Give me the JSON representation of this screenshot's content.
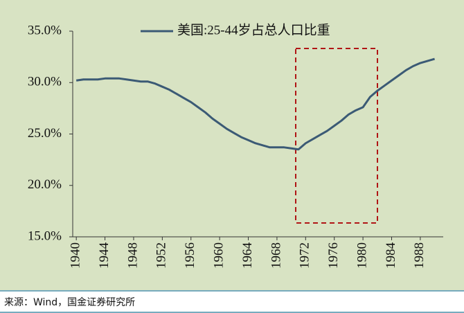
{
  "chart_data": {
    "type": "line",
    "x": [
      1940,
      1941,
      1942,
      1943,
      1944,
      1945,
      1946,
      1947,
      1948,
      1949,
      1950,
      1951,
      1952,
      1953,
      1954,
      1955,
      1956,
      1957,
      1958,
      1959,
      1960,
      1961,
      1962,
      1963,
      1964,
      1965,
      1966,
      1967,
      1968,
      1969,
      1970,
      1971,
      1972,
      1973,
      1974,
      1975,
      1976,
      1977,
      1978,
      1979,
      1980,
      1981,
      1982,
      1983,
      1984,
      1985,
      1986,
      1987,
      1988,
      1989,
      1990
    ],
    "series": [
      {
        "name": "美国:25-44岁占总人口比重",
        "color": "#3b5a75",
        "values": [
          30.2,
          30.3,
          30.3,
          30.3,
          30.4,
          30.4,
          30.4,
          30.3,
          30.2,
          30.1,
          30.1,
          29.9,
          29.6,
          29.3,
          28.9,
          28.5,
          28.1,
          27.6,
          27.1,
          26.5,
          26.0,
          25.5,
          25.1,
          24.7,
          24.4,
          24.1,
          23.9,
          23.7,
          23.7,
          23.7,
          23.6,
          23.5,
          24.1,
          24.5,
          24.9,
          25.3,
          25.8,
          26.3,
          26.9,
          27.3,
          27.6,
          28.6,
          29.2,
          29.7,
          30.2,
          30.7,
          31.2,
          31.6,
          31.9,
          32.1,
          32.3
        ]
      }
    ],
    "xlim": [
      1939.5,
      1991.2
    ],
    "xticks": [
      1940,
      1944,
      1948,
      1952,
      1956,
      1960,
      1964,
      1968,
      1972,
      1976,
      1980,
      1984,
      1988
    ],
    "ylim": [
      15,
      35
    ],
    "yticks": [
      {
        "value": 15,
        "label": "15.0%"
      },
      {
        "value": 20,
        "label": "20.0%"
      },
      {
        "value": 25,
        "label": "25.0%"
      },
      {
        "value": 30,
        "label": "30.0%"
      },
      {
        "value": 35,
        "label": "35.0%"
      }
    ],
    "legend": "top",
    "source": "来源：Wind，国金证券研究所"
  }
}
